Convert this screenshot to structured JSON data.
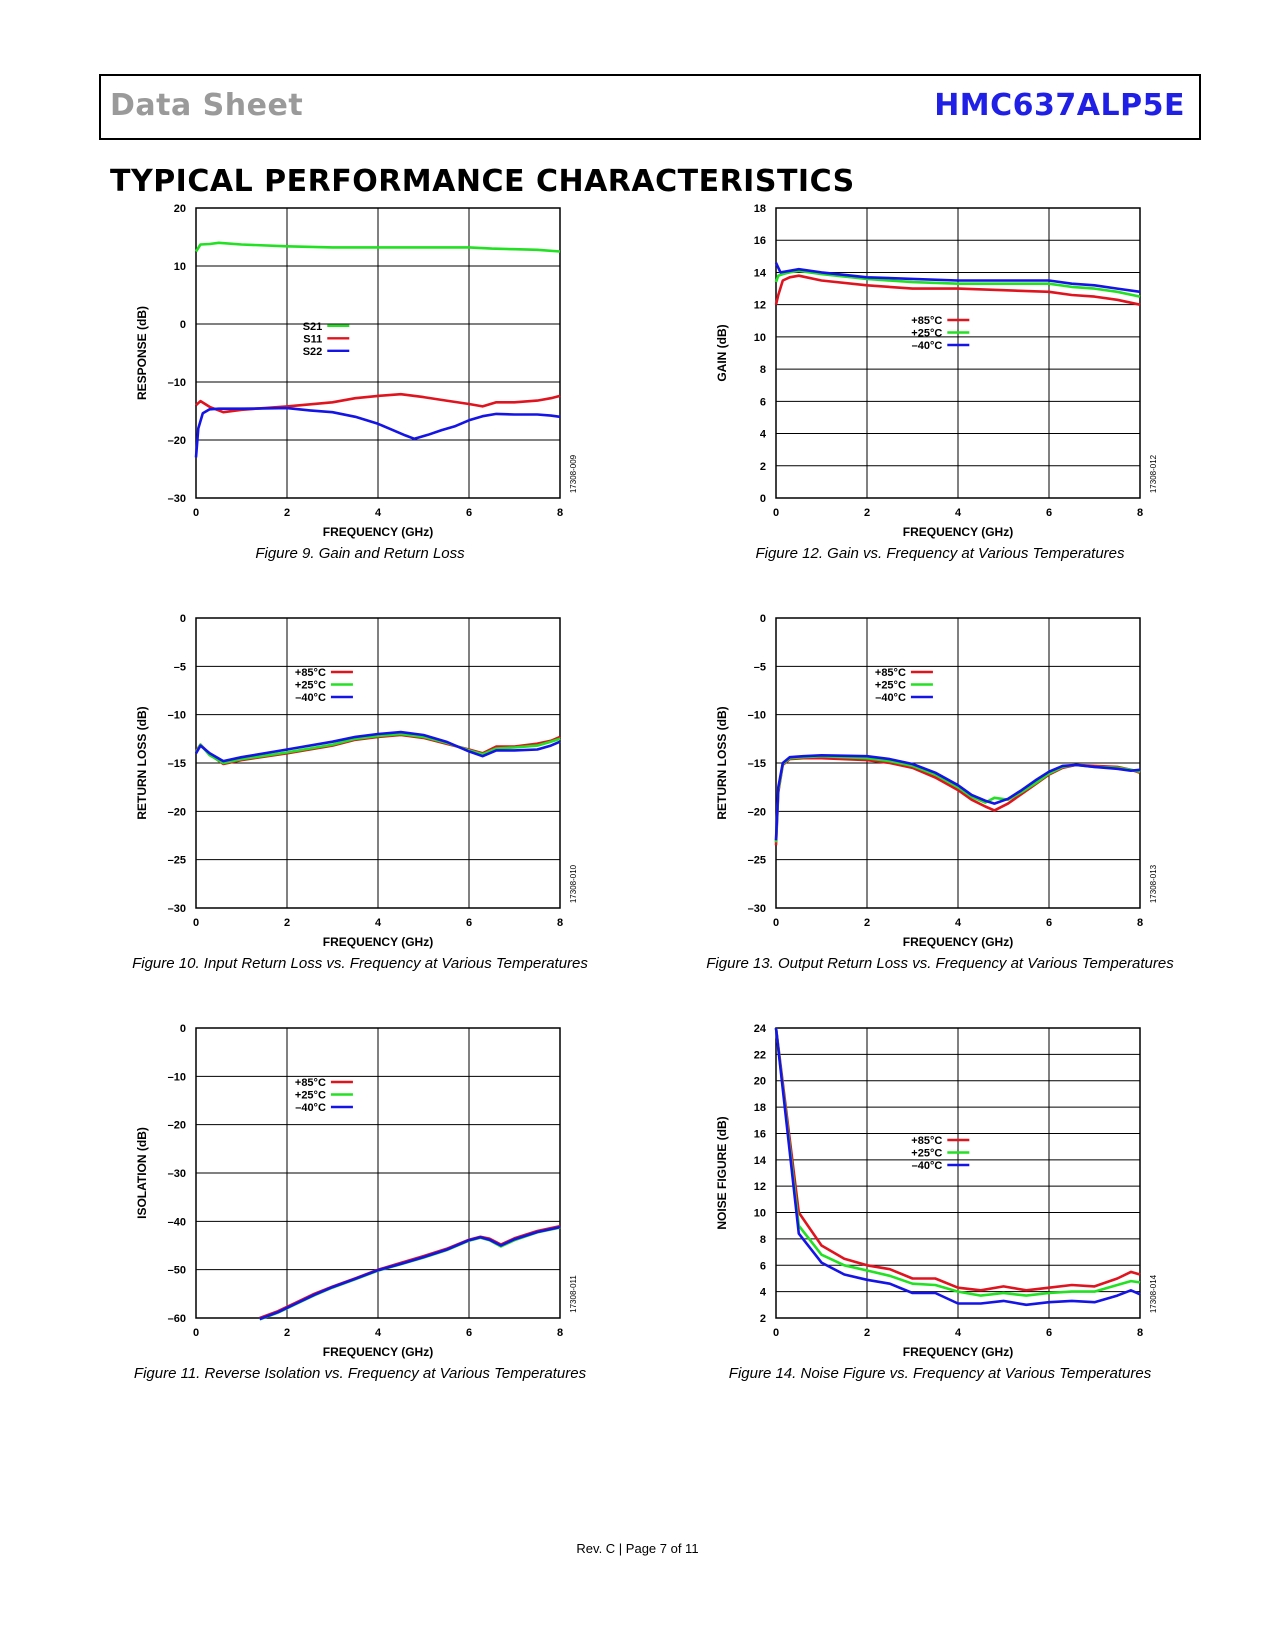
{
  "header": {
    "doc_type": "Data Sheet",
    "part_number": "HMC637ALP5E"
  },
  "section_title": "TYPICAL PERFORMANCE CHARACTERISTICS",
  "colors": {
    "red": "#e0141e",
    "green": "#22e022",
    "blue": "#1414e6",
    "part_number": "#1f1fe6"
  },
  "footer": {
    "text": "Rev. C | Page 7 of 11"
  },
  "chart_data": [
    {
      "id": "fig9",
      "type": "line",
      "caption": "Figure 9. Gain and Return Loss",
      "xlabel": "FREQUENCY (GHz)",
      "ylabel": "RESPONSE (dB)",
      "code": "17308-009",
      "xlim": [
        0,
        8
      ],
      "ylim": [
        -30,
        20
      ],
      "xticks": [
        0,
        2,
        4,
        6,
        8
      ],
      "yticks": [
        -30,
        -20,
        -10,
        0,
        10,
        20
      ],
      "ytick_labels": [
        "–30",
        "–20",
        "–10",
        "0",
        "10",
        "20"
      ],
      "grid": true,
      "legend_position": "center-left",
      "series": [
        {
          "name": "S21",
          "color": "green",
          "x": [
            0,
            0.1,
            0.3,
            0.5,
            1,
            2,
            3,
            4,
            5,
            6,
            6.5,
            7,
            7.5,
            8
          ],
          "y": [
            12.5,
            13.7,
            13.8,
            14,
            13.7,
            13.4,
            13.2,
            13.2,
            13.2,
            13.2,
            13,
            12.9,
            12.8,
            12.5
          ]
        },
        {
          "name": "S11",
          "color": "red",
          "x": [
            0,
            0.1,
            0.3,
            0.6,
            1,
            2,
            3,
            3.5,
            4,
            4.5,
            5,
            5.5,
            6,
            6.3,
            6.6,
            7,
            7.5,
            7.8,
            8
          ],
          "y": [
            -14,
            -13.3,
            -14.3,
            -15.2,
            -14.8,
            -14.2,
            -13.5,
            -12.8,
            -12.4,
            -12.1,
            -12.6,
            -13.2,
            -13.8,
            -14.2,
            -13.5,
            -13.5,
            -13.2,
            -12.8,
            -12.4
          ]
        },
        {
          "name": "S22",
          "color": "blue",
          "x": [
            0,
            0.05,
            0.15,
            0.3,
            0.5,
            1,
            2,
            2.5,
            3,
            3.5,
            4,
            4.3,
            4.6,
            4.8,
            5.1,
            5.4,
            5.7,
            6,
            6.3,
            6.6,
            7,
            7.5,
            7.8,
            8
          ],
          "y": [
            -23,
            -18,
            -15.4,
            -14.7,
            -14.6,
            -14.6,
            -14.5,
            -14.9,
            -15.2,
            -16,
            -17.2,
            -18.2,
            -19.2,
            -19.8,
            -19.1,
            -18.3,
            -17.6,
            -16.6,
            -15.9,
            -15.5,
            -15.6,
            -15.6,
            -15.8,
            -16
          ]
        }
      ]
    },
    {
      "id": "fig12",
      "type": "line",
      "caption": "Figure 12. Gain vs. Frequency at Various Temperatures",
      "xlabel": "FREQUENCY (GHz)",
      "ylabel": "GAIN (dB)",
      "code": "17308-012",
      "xlim": [
        0,
        8
      ],
      "ylim": [
        0,
        18
      ],
      "xticks": [
        0,
        2,
        4,
        6,
        8
      ],
      "yticks": [
        0,
        2,
        4,
        6,
        8,
        10,
        12,
        14,
        16,
        18
      ],
      "ytick_labels": [
        "0",
        "2",
        "4",
        "6",
        "8",
        "10",
        "12",
        "14",
        "16",
        "18"
      ],
      "grid": true,
      "legend_position": "center",
      "series": [
        {
          "name": "+85°C",
          "color": "red",
          "x": [
            0,
            0.05,
            0.15,
            0.3,
            0.5,
            1,
            2,
            3,
            4,
            5,
            6,
            6.5,
            7,
            7.5,
            8
          ],
          "y": [
            12,
            12.6,
            13.5,
            13.7,
            13.8,
            13.5,
            13.2,
            13,
            13,
            12.9,
            12.8,
            12.6,
            12.5,
            12.3,
            12
          ]
        },
        {
          "name": "+25°C",
          "color": "green",
          "x": [
            0,
            0.05,
            0.15,
            0.3,
            0.5,
            1,
            2,
            3,
            4,
            5,
            6,
            6.5,
            7,
            7.5,
            8
          ],
          "y": [
            13.4,
            13.8,
            13.9,
            14,
            14.1,
            13.9,
            13.6,
            13.4,
            13.3,
            13.3,
            13.3,
            13.1,
            13,
            12.8,
            12.5
          ]
        },
        {
          "name": "–40°C",
          "color": "blue",
          "x": [
            0,
            0.1,
            0.3,
            0.5,
            1,
            2,
            3,
            4,
            5,
            6,
            6.5,
            7,
            7.5,
            8
          ],
          "y": [
            14.6,
            14,
            14.1,
            14.2,
            14,
            13.7,
            13.6,
            13.5,
            13.5,
            13.5,
            13.3,
            13.2,
            13,
            12.8
          ]
        }
      ]
    },
    {
      "id": "fig10",
      "type": "line",
      "caption": "Figure 10. Input Return Loss vs. Frequency at Various Temperatures",
      "xlabel": "FREQUENCY (GHz)",
      "ylabel": "RETURN LOSS (dB)",
      "code": "17308-010",
      "xlim": [
        0,
        8
      ],
      "ylim": [
        -30,
        0
      ],
      "xticks": [
        0,
        2,
        4,
        6,
        8
      ],
      "yticks": [
        -30,
        -25,
        -20,
        -15,
        -10,
        -5,
        0
      ],
      "ytick_labels": [
        "–30",
        "–25",
        "–20",
        "–15",
        "–10",
        "–5",
        "0"
      ],
      "grid": true,
      "legend_position": "top-center",
      "series": [
        {
          "name": "+85°C",
          "color": "red",
          "x": [
            0,
            0.1,
            0.3,
            0.6,
            1,
            2,
            3,
            3.5,
            4,
            4.5,
            5,
            5.5,
            6,
            6.3,
            6.6,
            7,
            7.5,
            7.8,
            8
          ],
          "y": [
            -13.8,
            -13.1,
            -14.1,
            -15.1,
            -14.7,
            -14,
            -13.2,
            -12.6,
            -12.3,
            -12.1,
            -12.4,
            -13,
            -13.6,
            -14,
            -13.3,
            -13.3,
            -13,
            -12.7,
            -12.3
          ]
        },
        {
          "name": "+25°C",
          "color": "green",
          "x": [
            0,
            0.1,
            0.3,
            0.6,
            1,
            2,
            3,
            3.5,
            4,
            4.5,
            5,
            5.5,
            6,
            6.3,
            6.6,
            7,
            7.5,
            7.8,
            8
          ],
          "y": [
            -13.9,
            -13.1,
            -14.2,
            -15,
            -14.6,
            -13.9,
            -13.1,
            -12.5,
            -12.2,
            -12,
            -12.3,
            -12.9,
            -13.7,
            -14.1,
            -13.5,
            -13.4,
            -13.2,
            -12.8,
            -12.5
          ]
        },
        {
          "name": "–40°C",
          "color": "blue",
          "x": [
            0,
            0.1,
            0.3,
            0.6,
            1,
            2,
            3,
            3.5,
            4,
            4.5,
            5,
            5.5,
            6,
            6.3,
            6.6,
            7,
            7.5,
            7.8,
            8
          ],
          "y": [
            -14,
            -13.2,
            -14,
            -14.8,
            -14.4,
            -13.6,
            -12.8,
            -12.3,
            -12,
            -11.8,
            -12.1,
            -12.8,
            -13.8,
            -14.3,
            -13.7,
            -13.7,
            -13.6,
            -13.2,
            -12.8
          ]
        }
      ]
    },
    {
      "id": "fig13",
      "type": "line",
      "caption": "Figure 13. Output Return Loss vs. Frequency at Various Temperatures",
      "xlabel": "FREQUENCY (GHz)",
      "ylabel": "RETURN LOSS (dB)",
      "code": "17308-013",
      "xlim": [
        0,
        8
      ],
      "ylim": [
        -30,
        0
      ],
      "xticks": [
        0,
        2,
        4,
        6,
        8
      ],
      "yticks": [
        -30,
        -25,
        -20,
        -15,
        -10,
        -5,
        0
      ],
      "ytick_labels": [
        "–30",
        "–25",
        "–20",
        "–15",
        "–10",
        "–5",
        "0"
      ],
      "grid": true,
      "legend_position": "top-center",
      "series": [
        {
          "name": "+85°C",
          "color": "red",
          "x": [
            0,
            0.05,
            0.15,
            0.3,
            0.6,
            1,
            2,
            2.5,
            3,
            3.5,
            4,
            4.3,
            4.6,
            4.8,
            5.1,
            5.4,
            5.7,
            6,
            6.3,
            6.6,
            7,
            7.5,
            7.8,
            8
          ],
          "y": [
            -23.5,
            -18,
            -15.2,
            -14.6,
            -14.5,
            -14.5,
            -14.7,
            -15,
            -15.5,
            -16.5,
            -17.8,
            -18.8,
            -19.5,
            -19.9,
            -19.2,
            -18.2,
            -17.2,
            -16.2,
            -15.5,
            -15.2,
            -15.3,
            -15.4,
            -15.7,
            -16
          ]
        },
        {
          "name": "+25°C",
          "color": "green",
          "x": [
            0,
            0.05,
            0.15,
            0.3,
            0.6,
            1,
            2,
            2.5,
            3,
            3.5,
            4,
            4.3,
            4.6,
            4.8,
            5.1,
            5.4,
            5.7,
            6,
            6.3,
            6.6,
            7,
            7.5,
            7.8,
            8
          ],
          "y": [
            -23.2,
            -17.8,
            -15.1,
            -14.5,
            -14.4,
            -14.3,
            -14.5,
            -14.8,
            -15.3,
            -16.2,
            -17.5,
            -18.5,
            -19.1,
            -18.6,
            -18.8,
            -18,
            -17.1,
            -16.1,
            -15.4,
            -15.2,
            -15.4,
            -15.5,
            -15.7,
            -15.9
          ]
        },
        {
          "name": "–40°C",
          "color": "blue",
          "x": [
            0,
            0.05,
            0.15,
            0.3,
            0.6,
            1,
            2,
            2.5,
            3,
            3.5,
            4,
            4.3,
            4.6,
            4.8,
            5.1,
            5.4,
            5.7,
            6,
            6.3,
            6.6,
            7,
            7.5,
            7.8,
            8
          ],
          "y": [
            -23,
            -17.5,
            -15,
            -14.4,
            -14.3,
            -14.2,
            -14.3,
            -14.6,
            -15.1,
            -16,
            -17.3,
            -18.3,
            -18.9,
            -19.2,
            -18.7,
            -17.8,
            -16.8,
            -15.9,
            -15.3,
            -15.2,
            -15.4,
            -15.6,
            -15.8,
            -15.7
          ]
        }
      ]
    },
    {
      "id": "fig11",
      "type": "line",
      "caption": "Figure 11. Reverse Isolation vs. Frequency at Various Temperatures",
      "xlabel": "FREQUENCY (GHz)",
      "ylabel": "ISOLATION (dB)",
      "code": "17308-011",
      "xlim": [
        0,
        8
      ],
      "ylim": [
        -60,
        0
      ],
      "xticks": [
        0,
        2,
        4,
        6,
        8
      ],
      "yticks": [
        -60,
        -50,
        -40,
        -30,
        -20,
        -10,
        0
      ],
      "ytick_labels": [
        "–60",
        "–50",
        "–40",
        "–30",
        "–20",
        "–10",
        "0"
      ],
      "grid": true,
      "legend_position": "top-center",
      "series": [
        {
          "name": "+85°C",
          "color": "red",
          "x": [
            1.4,
            1.8,
            2.2,
            2.6,
            3,
            3.5,
            4,
            4.5,
            5,
            5.5,
            6,
            6.25,
            6.45,
            6.7,
            7,
            7.5,
            8
          ],
          "y": [
            -60,
            -58.6,
            -56.8,
            -55,
            -53.5,
            -51.8,
            -50,
            -48.6,
            -47.2,
            -45.7,
            -43.8,
            -43.2,
            -43.6,
            -44.8,
            -43.5,
            -42,
            -41
          ]
        },
        {
          "name": "+25°C",
          "color": "green",
          "x": [
            1.4,
            1.8,
            2.2,
            2.6,
            3,
            3.5,
            4,
            4.5,
            5,
            5.5,
            6,
            6.25,
            6.45,
            6.7,
            7,
            7.5,
            8
          ],
          "y": [
            -60.3,
            -58.9,
            -57.1,
            -55.3,
            -53.7,
            -52,
            -50.2,
            -48.9,
            -47.5,
            -46,
            -44,
            -43.4,
            -43.9,
            -45.2,
            -43.9,
            -42.3,
            -41.3
          ]
        },
        {
          "name": "–40°C",
          "color": "blue",
          "x": [
            1.4,
            1.8,
            2.2,
            2.6,
            3,
            3.5,
            4,
            4.5,
            5,
            5.5,
            6,
            6.25,
            6.45,
            6.7,
            7,
            7.5,
            8
          ],
          "y": [
            -60.2,
            -58.8,
            -57,
            -55.2,
            -53.6,
            -51.9,
            -50.1,
            -48.8,
            -47.4,
            -45.9,
            -43.9,
            -43.3,
            -43.8,
            -45,
            -43.7,
            -42.2,
            -41.2
          ]
        }
      ]
    },
    {
      "id": "fig14",
      "type": "line",
      "caption": "Figure 14. Noise Figure vs. Frequency at Various Temperatures",
      "xlabel": "FREQUENCY (GHz)",
      "ylabel": "NOISE FIGURE (dB)",
      "code": "17308-014",
      "xlim": [
        0,
        8
      ],
      "ylim": [
        2,
        24
      ],
      "xticks": [
        0,
        2,
        4,
        6,
        8
      ],
      "yticks": [
        2,
        4,
        6,
        8,
        10,
        12,
        14,
        16,
        18,
        20,
        22,
        24
      ],
      "ytick_labels": [
        "2",
        "4",
        "6",
        "8",
        "10",
        "12",
        "14",
        "16",
        "18",
        "20",
        "22",
        "24"
      ],
      "grid": true,
      "legend_position": "center",
      "series": [
        {
          "name": "+85°C",
          "color": "red",
          "x": [
            0,
            0.5,
            1,
            1.5,
            2,
            2.5,
            3,
            3.5,
            4,
            4.5,
            5,
            5.5,
            6,
            6.5,
            7,
            7.5,
            7.8,
            8
          ],
          "y": [
            24,
            10,
            7.5,
            6.5,
            6,
            5.7,
            5,
            5,
            4.3,
            4.1,
            4.4,
            4.1,
            4.3,
            4.5,
            4.4,
            5,
            5.5,
            5.3
          ]
        },
        {
          "name": "+25°C",
          "color": "green",
          "x": [
            0,
            0.5,
            1,
            1.5,
            2,
            2.5,
            3,
            3.5,
            4,
            4.5,
            5,
            5.5,
            6,
            6.5,
            7,
            7.5,
            7.8,
            8
          ],
          "y": [
            24,
            9,
            6.8,
            6,
            5.6,
            5.2,
            4.6,
            4.5,
            4,
            3.7,
            3.9,
            3.7,
            3.9,
            4,
            4,
            4.5,
            4.8,
            4.7
          ]
        },
        {
          "name": "–40°C",
          "color": "blue",
          "x": [
            0,
            0.5,
            1,
            1.5,
            2,
            2.5,
            3,
            3.5,
            4,
            4.5,
            5,
            5.5,
            6,
            6.5,
            7,
            7.5,
            7.8,
            8
          ],
          "y": [
            24,
            8.4,
            6.2,
            5.3,
            4.9,
            4.6,
            3.9,
            3.9,
            3.1,
            3.1,
            3.3,
            3.0,
            3.2,
            3.3,
            3.2,
            3.7,
            4.1,
            3.8
          ]
        }
      ]
    }
  ]
}
